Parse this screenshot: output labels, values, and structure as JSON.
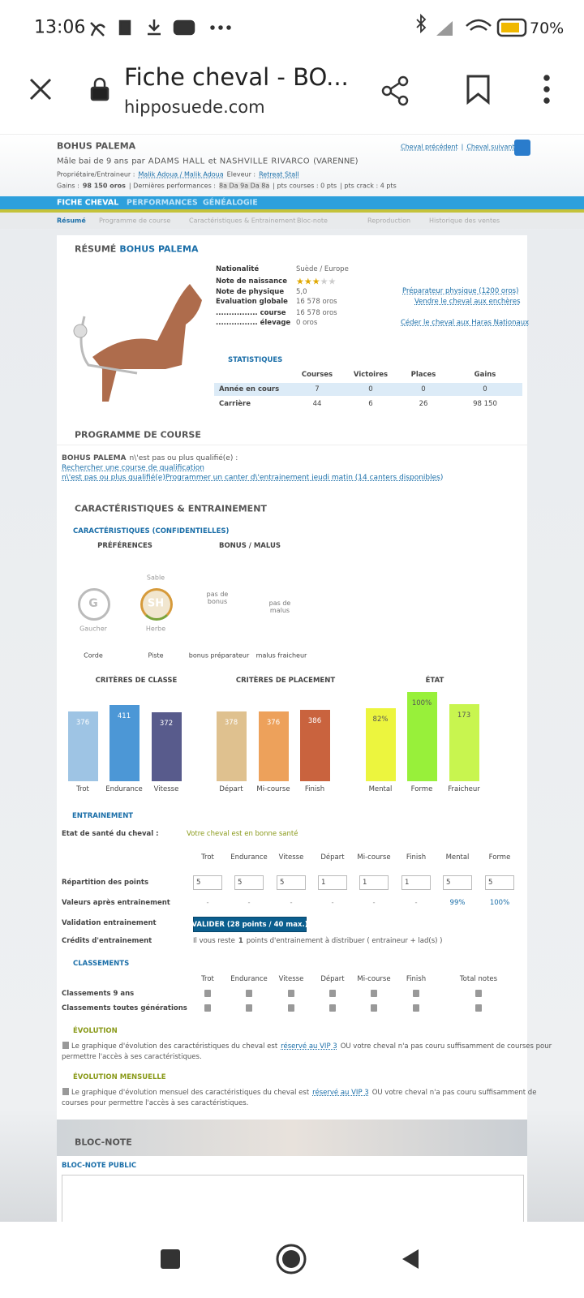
{
  "status_bar": {
    "time": "13:06",
    "battery": "70%"
  },
  "browser": {
    "title": "Fiche cheval - BO...",
    "domain": "hipposuede.com"
  },
  "header": {
    "name": "BOHUS PALEMA",
    "birth": "Mâle bai de 9 ans",
    "par": "par",
    "sire": "ADAMS HALL",
    "et": "et",
    "dam": "NASHVILLE RIVARCO",
    "dam_sire": "(VARENNE)",
    "owner_label": "Propriétaire/Entraineur :",
    "owner": "Malik Adoua / Malik Adoua",
    "breeder_label": "Eleveur :",
    "breeder": "Retreat Stall",
    "gains_label": "Gains :",
    "gains": "98 150 oros",
    "perf_label": "| Dernières performances :",
    "perf": "8a Da 9a Da 8a",
    "pts_courses": "| pts courses : 0 pts",
    "pts_crack": "| pts crack : 4 pts",
    "prev": "Cheval précédent",
    "sep": "|",
    "next": "Cheval suivant"
  },
  "tabs": [
    "FICHE CHEVAL",
    "PERFORMANCES",
    "GÉNÉALOGIE"
  ],
  "subtabs": [
    "Résumé",
    "Programme de course",
    "Caractéristiques & Entrainement",
    "Bloc-note",
    "Reproduction",
    "Historique des ventes"
  ],
  "resume": {
    "title": "RÉSUMÉ",
    "name": "BOHUS PALEMA",
    "info": [
      {
        "label": "Nationalité",
        "value": "Suède / Europe"
      },
      {
        "label": "Note de naissance"
      },
      {
        "label": "Note de physique",
        "value": "5,0"
      },
      {
        "label": "Evaluation globale",
        "value": "16 578 oros"
      },
      {
        "label": "................ course",
        "value": "16 578 oros"
      },
      {
        "label": "................ élevage",
        "value": "0 oros"
      }
    ],
    "links": [
      "Préparateur physique (1200 oros)",
      "Vendre le cheval aux enchères",
      "Céder le cheval aux Haras Nationaux"
    ],
    "stats_title": "STATISTIQUES",
    "stats_headers": [
      "Courses",
      "Victoires",
      "Places",
      "Gains"
    ],
    "stats_rows": [
      [
        "Année en cours",
        7,
        0,
        0,
        0
      ],
      [
        "Carrière",
        44,
        6,
        26,
        "98 150"
      ]
    ]
  },
  "programme": {
    "title": "PROGRAMME DE COURSE",
    "name": "BOHUS PALEMA",
    "text": "n\\'est pas ou plus qualifié(e) :",
    "link1": "Rechercher une course de qualification",
    "link2": "n\\'est pas ou plus qualifié(e)Programmer un canter d\\'entrainement jeudi matin (14 canters disponibles)"
  },
  "carac": {
    "title": "CARACTÉRISTIQUES & ENTRAINEMENT",
    "subtitle": "CARACTÉRISTIQUES (CONFIDENTIELLES)",
    "preferences": "PRÉFÉRENCES",
    "bonus_malus": "BONUS / MALUS",
    "sable": "Sable",
    "icon1": "G",
    "icon2": "SH",
    "gaucher": "Gaucher",
    "herbe": "Herbe",
    "pas_bonus": "pas de bonus",
    "pas_malus": "pas de malus",
    "footer": [
      "Corde",
      "Piste",
      "bonus préparateur",
      "malus fraicheur"
    ],
    "bar_groups": [
      {
        "title": "CRITÈRES DE CLASSE",
        "names": [
          "Trot",
          "Endurance",
          "Vitesse"
        ],
        "values": [
          376,
          411,
          372
        ],
        "colors": [
          "#9ec4e4",
          "#4c97d6",
          "#585b8c"
        ]
      },
      {
        "title": "CRITÈRES DE PLACEMENT",
        "names": [
          "Départ",
          "Mi-course",
          "Finish"
        ],
        "values": [
          378,
          376,
          386
        ],
        "colors": [
          "#dfc18f",
          "#eda15b",
          "#c9633e"
        ]
      },
      {
        "title": "ÉTAT",
        "names": [
          "Mental",
          "Forme",
          "Fraicheur"
        ],
        "values": [
          82,
          100,
          173
        ],
        "value_labels": [
          "82%",
          "100%",
          "173"
        ],
        "colors": [
          "#ecf53e",
          "#98f03a",
          "#c8f54f"
        ]
      }
    ]
  },
  "entrainement": {
    "title": "ENTRAINEMENT",
    "sante_label": "Etat de santé du cheval :",
    "sante": "Votre cheval est en bonne santé",
    "cols": [
      "Trot",
      "Endurance",
      "Vitesse",
      "Départ",
      "Mi-course",
      "Finish",
      "Mental",
      "Forme"
    ],
    "rep_label": "Répartition des points",
    "rep": [
      5,
      5,
      5,
      1,
      1,
      1,
      5,
      5
    ],
    "val_label": "Valeurs après entrainement",
    "vals": [
      "-",
      "-",
      "-",
      "-",
      "-",
      "-",
      "99%",
      "100%"
    ],
    "validation_label": "Validation entrainement",
    "button": "VALIDER (28 points / 40 max.)",
    "credits_label": "Crédits d'entrainement",
    "credits_pre": "Il vous reste",
    "credits_n": 1,
    "credits_post": "points d'entrainement à distribuer ( entraineur + lad(s) )"
  },
  "classements": {
    "title": "CLASSEMENTS",
    "cols": [
      "Trot",
      "Endurance",
      "Vitesse",
      "Départ",
      "Mi-course",
      "Finish",
      "Total notes"
    ],
    "rows": [
      "Classements 9 ans",
      "Classements toutes générations"
    ]
  },
  "evolution": {
    "title": "ÉVOLUTION",
    "text1": "Le graphique d'évolution des caractéristiques du cheval est",
    "link": "réservé au VIP 3",
    "text2": "OU votre cheval n'a pas couru suffisamment de courses pour",
    "text3": "permettre l'accès à ses caractéristiques."
  },
  "evolution_mensuelle": {
    "title": "ÉVOLUTION MENSUELLE",
    "text1": "Le graphique d'évolution mensuel des caractéristiques du cheval est",
    "link": "réservé au VIP 3",
    "text2": "OU votre cheval n'a pas couru suffisamment de",
    "text3": "courses pour permettre l'accès à ses caractéristiques."
  },
  "bloc_note": {
    "title": "BLOC-NOTE",
    "public": "BLOC-NOTE PUBLIC"
  }
}
